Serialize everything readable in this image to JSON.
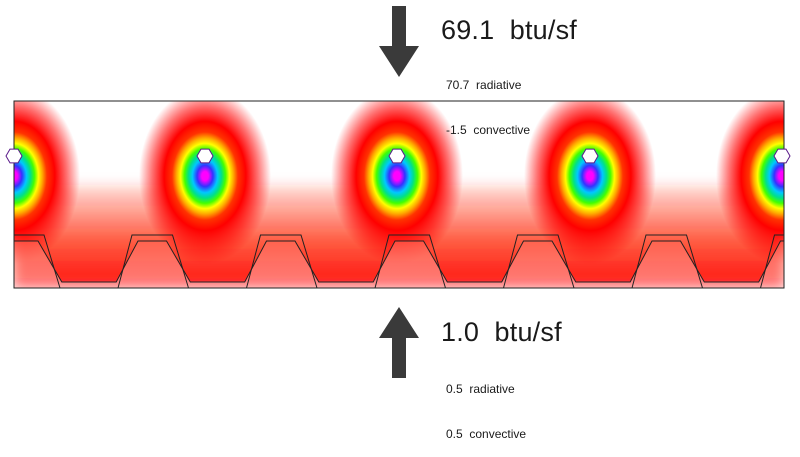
{
  "top_flux": {
    "total": "69.1  btu/sf",
    "radiative": "70.7  radiative",
    "convective": "-1.5  convective",
    "arrow_direction": "down"
  },
  "bottom_flux": {
    "total": "1.0  btu/sf",
    "radiative": "0.5  radiative",
    "convective": "0.5  convective",
    "arrow_direction": "up"
  },
  "colors": {
    "arrow": "#3a3a3a",
    "outline": "#222222",
    "pipe": "#ffffff",
    "gradient_hot": "#ff0000",
    "gradient_outer": "#ffffff",
    "gradient_stops": [
      "#ff00ff",
      "#3333ff",
      "#00c8ff",
      "#00e08a",
      "#44ff00",
      "#ffff00",
      "#ffaa00",
      "#ff3300",
      "#ff0000",
      "#ffffff"
    ]
  }
}
